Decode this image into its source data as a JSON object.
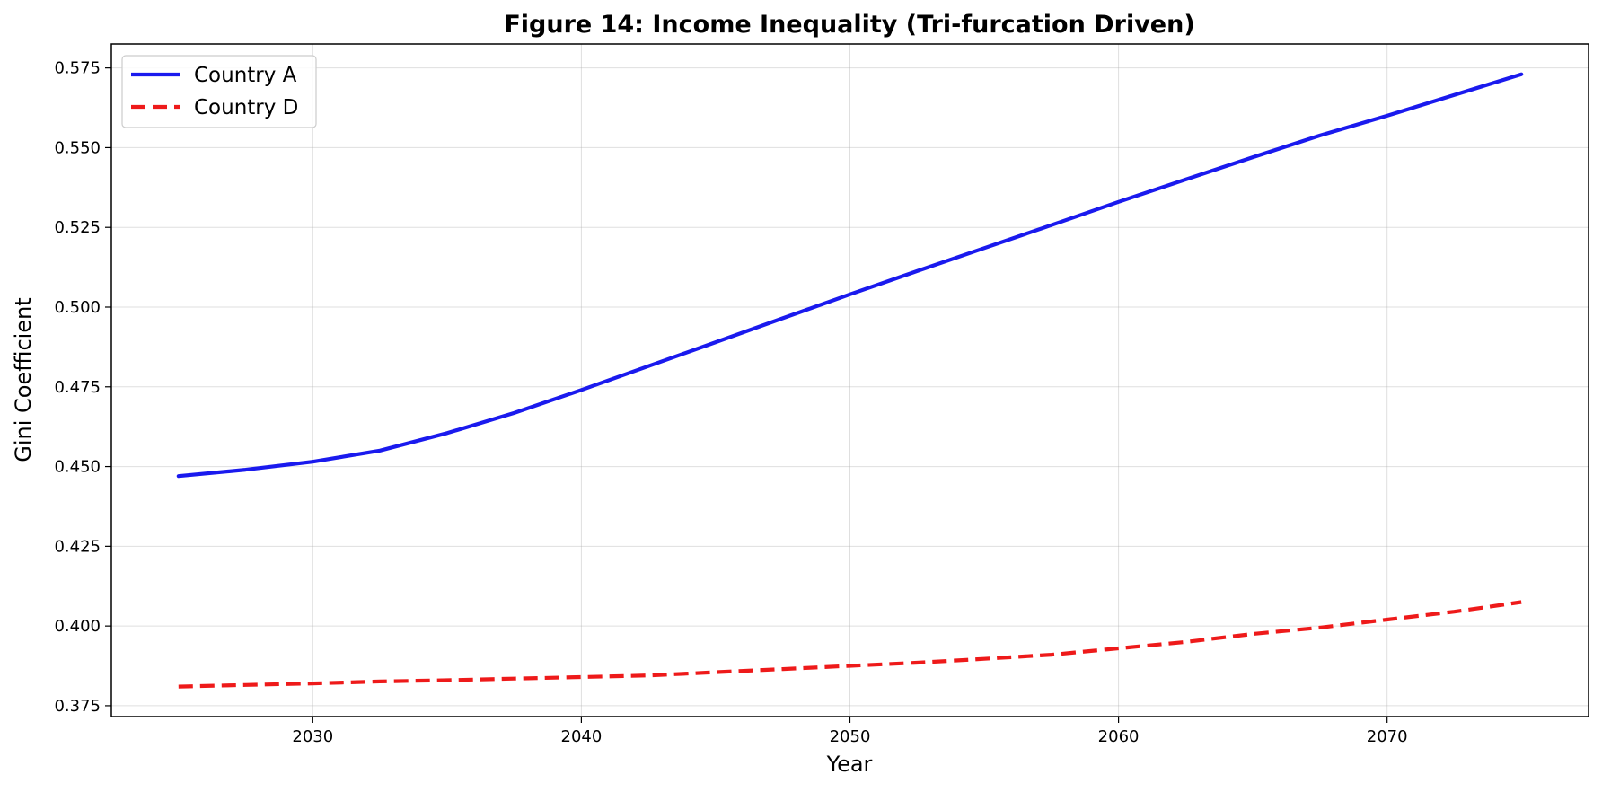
{
  "chart_data": {
    "type": "line",
    "title": "Figure 14: Income Inequality (Tri-furcation Driven)",
    "xlabel": "Year",
    "ylabel": "Gini Coefficient",
    "xlim": [
      2022.5,
      2077.5
    ],
    "ylim": [
      0.3716,
      0.5825
    ],
    "xticks": [
      2030,
      2040,
      2050,
      2060,
      2070
    ],
    "yticks": [
      0.375,
      0.4,
      0.425,
      0.45,
      0.475,
      0.5,
      0.525,
      0.55,
      0.575
    ],
    "grid": true,
    "legend_position": "top-left",
    "x": [
      2025,
      2027.5,
      2030,
      2032.5,
      2035,
      2037.5,
      2040,
      2042.5,
      2045,
      2047.5,
      2050,
      2052.5,
      2055,
      2057.5,
      2060,
      2062.5,
      2065,
      2067.5,
      2070,
      2072.5,
      2075
    ],
    "series": [
      {
        "name": "Country A",
        "color": "#1a1aee",
        "style": "solid",
        "values": [
          0.447,
          0.449,
          0.4515,
          0.455,
          0.4605,
          0.4668,
          0.474,
          0.4815,
          0.489,
          0.4965,
          0.504,
          0.5113,
          0.5185,
          0.5257,
          0.533,
          0.54,
          0.547,
          0.5538,
          0.56,
          0.5665,
          0.573
        ]
      },
      {
        "name": "Country D",
        "color": "#ee1a1a",
        "style": "dashed",
        "values": [
          0.381,
          0.3815,
          0.382,
          0.3826,
          0.383,
          0.3835,
          0.384,
          0.3845,
          0.3855,
          0.3865,
          0.3875,
          0.3885,
          0.3897,
          0.391,
          0.393,
          0.395,
          0.3975,
          0.3995,
          0.402,
          0.4045,
          0.4075
        ]
      }
    ]
  }
}
